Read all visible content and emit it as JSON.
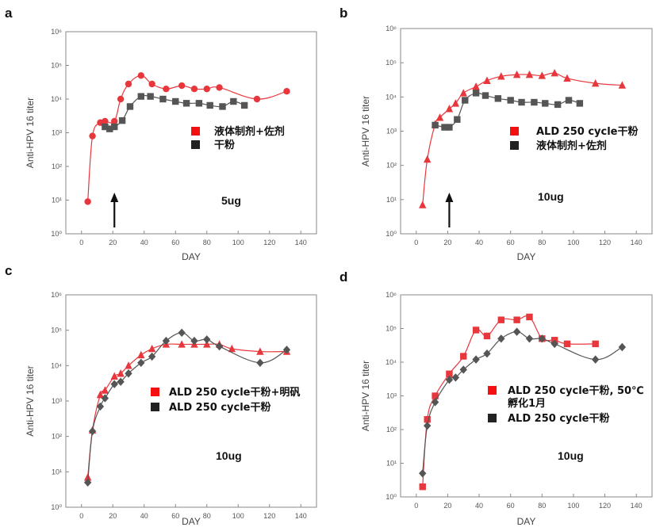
{
  "chart_data": [
    {
      "type": "line",
      "panel": "a",
      "annotation": "5ug",
      "xlabel": "DAY",
      "ylabel": "Anti-HPV 16 titer",
      "xlim": [
        -10,
        150
      ],
      "ylim": [
        1,
        1000000
      ],
      "yscale": "log",
      "x_ticks": [
        0,
        20,
        40,
        60,
        80,
        100,
        120,
        140
      ],
      "y_ticks": [
        "10⁰",
        "10¹",
        "10²",
        "10³",
        "10⁴",
        "10⁵",
        "10⁶"
      ],
      "arrow_day": 21,
      "series": [
        {
          "name": "液体制剂+佐剂",
          "color": "#e8373c",
          "marker": "circle",
          "x": [
            4,
            7,
            12,
            15,
            21,
            25,
            30,
            38,
            45,
            54,
            64,
            72,
            80,
            88,
            112,
            131
          ],
          "y": [
            9,
            800,
            2000,
            2200,
            2200,
            10000,
            28000,
            50000,
            28000,
            20000,
            25000,
            20000,
            20000,
            22000,
            10000,
            17000
          ]
        },
        {
          "name": "干粉",
          "color": "#555555",
          "marker": "square",
          "x": [
            15,
            18,
            21,
            26,
            31,
            38,
            44,
            52,
            60,
            67,
            75,
            82,
            90,
            97,
            104
          ],
          "y": [
            1500,
            1300,
            1500,
            2300,
            6000,
            12000,
            12000,
            10000,
            8500,
            7500,
            7500,
            6500,
            6000,
            8500,
            6500
          ]
        }
      ]
    },
    {
      "type": "line",
      "panel": "b",
      "annotation": "10ug",
      "xlabel": "DAY",
      "ylabel": "Anti-HPV 16 titer",
      "xlim": [
        -10,
        150
      ],
      "ylim": [
        1,
        1000000
      ],
      "yscale": "log",
      "x_ticks": [
        0,
        20,
        40,
        60,
        80,
        100,
        120,
        140
      ],
      "y_ticks": [
        "10⁰",
        "10¹",
        "10²",
        "10³",
        "10⁴",
        "10⁵",
        "10⁶"
      ],
      "arrow_day": 21,
      "series": [
        {
          "name": "ALD 250 cycle干粉",
          "color": "#e8373c",
          "marker": "triangle",
          "x": [
            4,
            7,
            12,
            15,
            21,
            25,
            30,
            38,
            45,
            54,
            64,
            72,
            80,
            88,
            96,
            114,
            131
          ],
          "y": [
            7,
            150,
            1600,
            2500,
            4500,
            6500,
            13000,
            20000,
            30000,
            40000,
            45000,
            45000,
            42000,
            50000,
            35000,
            25000,
            22000
          ]
        },
        {
          "name": "液体制剂+佐剂",
          "color": "#555555",
          "marker": "square",
          "x": [
            12,
            18,
            21,
            26,
            31,
            38,
            44,
            52,
            60,
            67,
            75,
            82,
            90,
            97,
            104
          ],
          "y": [
            1500,
            1300,
            1300,
            2200,
            8000,
            13000,
            11000,
            9000,
            8000,
            7000,
            7000,
            6500,
            6000,
            8000,
            6500
          ]
        }
      ]
    },
    {
      "type": "line",
      "panel": "c",
      "annotation": "10ug",
      "xlabel": "DAY",
      "ylabel": "Anti-HPV 16 titer",
      "xlim": [
        -10,
        150
      ],
      "ylim": [
        1,
        1000000
      ],
      "yscale": "log",
      "x_ticks": [
        0,
        20,
        40,
        60,
        80,
        100,
        120,
        140
      ],
      "y_ticks": [
        "10⁰",
        "10¹",
        "10²",
        "10³",
        "10⁴",
        "10⁵",
        "10⁶"
      ],
      "series": [
        {
          "name": "ALD 250 cycle干粉+明矾",
          "color": "#e8373c",
          "marker": "triangle",
          "x": [
            4,
            7,
            12,
            15,
            21,
            25,
            30,
            38,
            45,
            54,
            64,
            72,
            80,
            88,
            96,
            114,
            131
          ],
          "y": [
            7,
            150,
            1500,
            2000,
            5000,
            6000,
            10000,
            20000,
            30000,
            40000,
            40000,
            40000,
            40000,
            40000,
            30000,
            25000,
            25000
          ]
        },
        {
          "name": "ALD 250 cycle干粉",
          "color": "#555555",
          "marker": "diamond",
          "x": [
            4,
            7,
            12,
            15,
            21,
            25,
            30,
            38,
            45,
            54,
            64,
            72,
            80,
            88,
            114,
            131
          ],
          "y": [
            5,
            140,
            700,
            1200,
            3000,
            3500,
            6000,
            12000,
            18000,
            50000,
            85000,
            50000,
            55000,
            35000,
            12000,
            28000
          ]
        }
      ]
    },
    {
      "type": "line",
      "panel": "d",
      "annotation": "10ug",
      "xlabel": "DAY",
      "ylabel": "Anti-HPV 16 titer",
      "xlim": [
        -10,
        150
      ],
      "ylim": [
        1,
        1000000
      ],
      "yscale": "log",
      "x_ticks": [
        0,
        20,
        40,
        60,
        80,
        100,
        120,
        140
      ],
      "y_ticks": [
        "10⁰",
        "10¹",
        "10²",
        "10³",
        "10⁴",
        "10⁵",
        "10⁶"
      ],
      "series": [
        {
          "name": "ALD 250 cycle干粉, 50℃ 孵化1月",
          "legend_lines": [
            "ALD 250 cycle干粉, 50℃",
            "孵化1月"
          ],
          "color": "#e8373c",
          "marker": "square",
          "x": [
            4,
            7,
            12,
            21,
            30,
            38,
            45,
            54,
            64,
            72,
            80,
            88,
            96,
            114
          ],
          "y": [
            2,
            200,
            1000,
            4500,
            15000,
            90000,
            60000,
            180000,
            180000,
            220000,
            50000,
            45000,
            35000,
            35000
          ]
        },
        {
          "name": "ALD 250 cycle干粉",
          "color": "#555555",
          "marker": "diamond",
          "x": [
            4,
            7,
            12,
            21,
            25,
            30,
            38,
            45,
            54,
            64,
            72,
            80,
            88,
            114,
            131
          ],
          "y": [
            5,
            130,
            650,
            3000,
            3500,
            6000,
            12000,
            18000,
            50000,
            80000,
            50000,
            50000,
            35000,
            12000,
            28000
          ]
        }
      ]
    }
  ]
}
